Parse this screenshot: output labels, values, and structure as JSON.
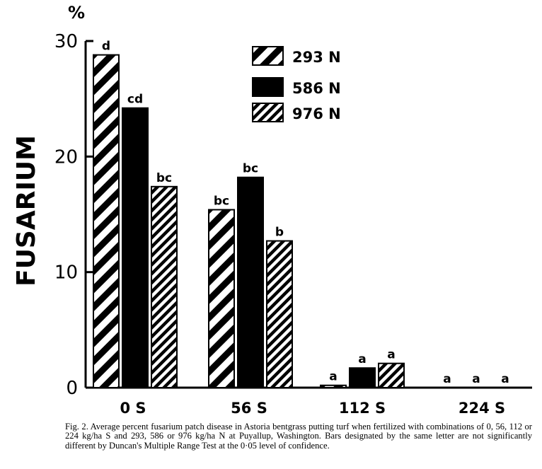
{
  "chart_data": {
    "type": "bar",
    "ylabel": "FUSARIUM",
    "yunit": "%",
    "ylim": [
      0,
      30
    ],
    "yticks": [
      0,
      10,
      20,
      30
    ],
    "categories": [
      "0 S",
      "56 S",
      "112 S",
      "224 S"
    ],
    "series": [
      {
        "name": "293 N",
        "pattern": "wide-diagonal-hatch",
        "values": [
          28.8,
          15.4,
          0.2,
          0.0
        ],
        "letters": [
          "d",
          "bc",
          "a",
          "a"
        ]
      },
      {
        "name": "586 N",
        "pattern": "solid",
        "values": [
          24.2,
          18.2,
          1.7,
          0.0
        ],
        "letters": [
          "cd",
          "bc",
          "a",
          "a"
        ]
      },
      {
        "name": "976 N",
        "pattern": "narrow-diagonal-hatch",
        "values": [
          17.4,
          12.7,
          2.1,
          0.0
        ],
        "letters": [
          "bc",
          "b",
          "a",
          "a"
        ]
      }
    ],
    "legend_position": "top-center",
    "grid": false
  },
  "caption": "Fig. 2. Average percent fusarium patch disease in Astoria bentgrass putting turf when fertilized with combinations of 0, 56, 112 or 224 kg/ha S and 293, 586 or 976 kg/ha N at Puyallup, Washington. Bars designated by the same letter are not significantly different by Duncan's Multiple Range Test at the 0·05 level of confidence."
}
